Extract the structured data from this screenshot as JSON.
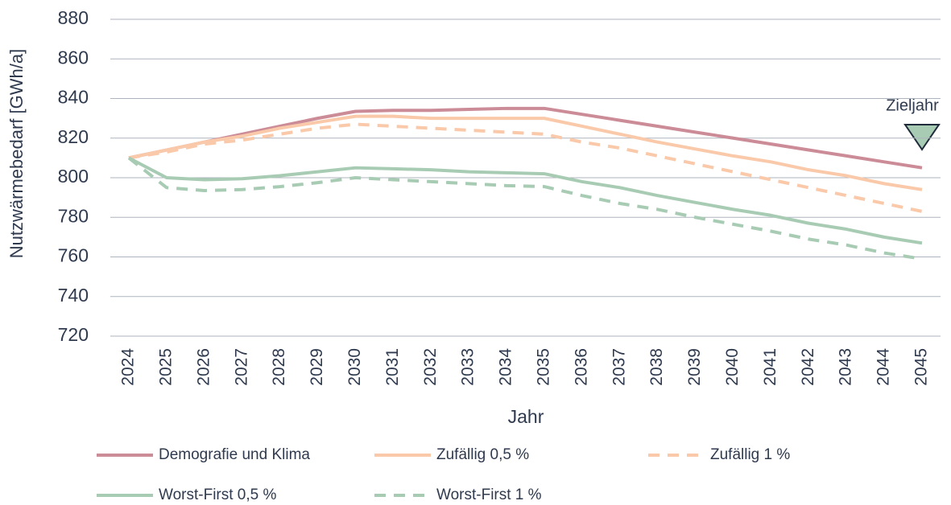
{
  "chart_data": {
    "type": "line",
    "y_label": "Nutzwärmebedarf [GWh/a]",
    "x_label": "Jahr",
    "annotation": "Zieljahr",
    "categories": [
      "2024",
      "2025",
      "2026",
      "2027",
      "2028",
      "2029",
      "2030",
      "2031",
      "2032",
      "2033",
      "2034",
      "2035",
      "2036",
      "2037",
      "2038",
      "2039",
      "2040",
      "2041",
      "2042",
      "2043",
      "2044",
      "2045"
    ],
    "series": [
      {
        "name": "Demografie und Klima",
        "color": "#cb8b97",
        "dash": false,
        "values": [
          810,
          814,
          818,
          822,
          826,
          830,
          833.5,
          834,
          834,
          834.5,
          835,
          835,
          832,
          829,
          826,
          823,
          820,
          817,
          814,
          811,
          808,
          805
        ]
      },
      {
        "name": "Zufällig 0,5 %",
        "color": "#f9c9aa",
        "dash": false,
        "values": [
          810,
          814,
          818,
          821,
          825,
          828,
          831,
          831,
          830,
          830,
          830,
          830,
          826,
          822,
          818,
          814.5,
          811,
          808,
          804,
          801,
          797,
          794
        ]
      },
      {
        "name": "Zufällig 1 %",
        "color": "#f9c9aa",
        "dash": true,
        "values": [
          810,
          813,
          817,
          819,
          822,
          825,
          827,
          826,
          825,
          824,
          823,
          822,
          818,
          815,
          811,
          807,
          803,
          799,
          795,
          791,
          787,
          783
        ]
      },
      {
        "name": "Worst-First 0,5 %",
        "color": "#a8cbb4",
        "dash": false,
        "values": [
          810,
          800,
          799,
          799.5,
          801,
          803,
          805,
          804.5,
          804,
          803,
          802.5,
          802,
          798,
          795,
          791,
          787.5,
          784,
          781,
          777,
          774,
          770,
          767
        ]
      },
      {
        "name": "Worst-First 1 %",
        "color": "#a8cbb4",
        "dash": true,
        "values": [
          810,
          795,
          793.5,
          794,
          795.5,
          797.5,
          800,
          799,
          798,
          797,
          796,
          795.5,
          791,
          787,
          784,
          780,
          776.5,
          773,
          769,
          766,
          762,
          759
        ]
      }
    ],
    "ylim": [
      720,
      880
    ],
    "yticks": [
      720,
      740,
      760,
      780,
      800,
      820,
      840,
      860,
      880
    ],
    "grid": true
  }
}
